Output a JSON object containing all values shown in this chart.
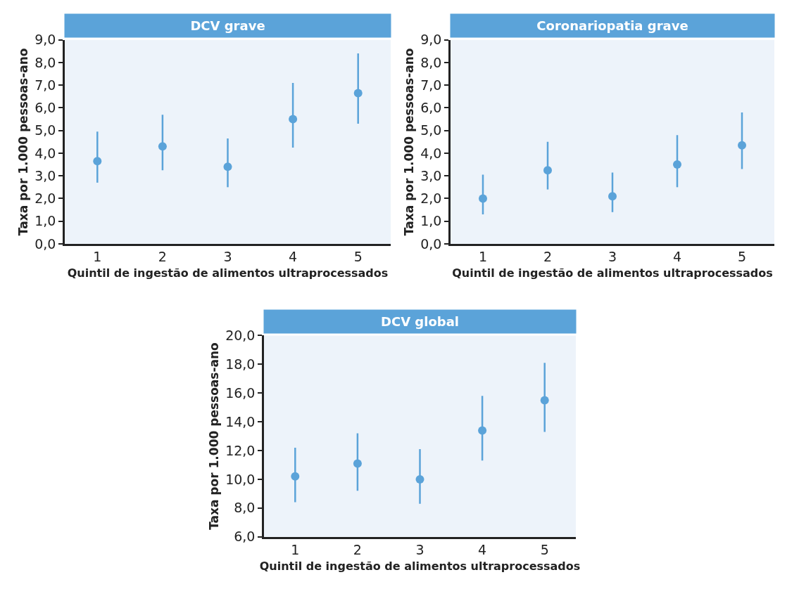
{
  "chart_data": [
    {
      "type": "scatter",
      "title": "DCV grave",
      "xlabel": "Quintil de ingestão de alimentos ultraprocessados",
      "ylabel": "Taxa por 1.000 pessoas-ano",
      "categories": [
        "1",
        "2",
        "3",
        "4",
        "5"
      ],
      "marker": "circle",
      "series": [
        {
          "color": "#5ba3d9",
          "values": [
            3.65,
            4.3,
            3.4,
            5.5,
            6.65
          ],
          "errors": [
            [
              2.7,
              4.95
            ],
            [
              3.25,
              5.7
            ],
            [
              2.5,
              4.65
            ],
            [
              4.25,
              7.1
            ],
            [
              5.3,
              8.4
            ]
          ]
        }
      ],
      "ylim": [
        0,
        9
      ],
      "yticks": [
        {
          "value": 0,
          "label": "0,0"
        },
        {
          "value": 1,
          "label": "1,0"
        },
        {
          "value": 2,
          "label": "2,0"
        },
        {
          "value": 3,
          "label": "3,0"
        },
        {
          "value": 4,
          "label": "4,0"
        },
        {
          "value": 5,
          "label": "5,0"
        },
        {
          "value": 6,
          "label": "6,0"
        },
        {
          "value": 7,
          "label": "7,0"
        },
        {
          "value": 8,
          "label": "8,0"
        },
        {
          "value": 9,
          "label": "9,0"
        }
      ]
    },
    {
      "type": "scatter",
      "title": "Coronariopatia grave",
      "xlabel": "Quintil de ingestão de alimentos ultraprocessados",
      "ylabel": "Taxa por 1.000 pessoas-ano",
      "categories": [
        "1",
        "2",
        "3",
        "4",
        "5"
      ],
      "marker": "circle",
      "series": [
        {
          "color": "#5ba3d9",
          "values": [
            2.0,
            3.25,
            2.1,
            3.5,
            4.35
          ],
          "errors": [
            [
              1.3,
              3.05
            ],
            [
              2.4,
              4.5
            ],
            [
              1.4,
              3.15
            ],
            [
              2.5,
              4.8
            ],
            [
              3.3,
              5.8
            ]
          ]
        }
      ],
      "ylim": [
        0,
        9
      ],
      "yticks": [
        {
          "value": 0,
          "label": "0,0"
        },
        {
          "value": 1,
          "label": "1,0"
        },
        {
          "value": 2,
          "label": "2,0"
        },
        {
          "value": 3,
          "label": "3,0"
        },
        {
          "value": 4,
          "label": "4,0"
        },
        {
          "value": 5,
          "label": "5,0"
        },
        {
          "value": 6,
          "label": "6,0"
        },
        {
          "value": 7,
          "label": "7,0"
        },
        {
          "value": 8,
          "label": "8,0"
        },
        {
          "value": 9,
          "label": "9,0"
        }
      ]
    },
    {
      "type": "scatter",
      "title": "DCV global",
      "xlabel": "Quintil de ingestão de alimentos ultraprocessados",
      "ylabel": "Taxa por 1.000 pessoas-ano",
      "categories": [
        "1",
        "2",
        "3",
        "4",
        "5"
      ],
      "marker": "circle",
      "series": [
        {
          "color": "#5ba3d9",
          "values": [
            10.2,
            11.1,
            10.0,
            13.4,
            15.5
          ],
          "errors": [
            [
              8.4,
              12.2
            ],
            [
              9.2,
              13.2
            ],
            [
              8.3,
              12.1
            ],
            [
              11.3,
              15.8
            ],
            [
              13.3,
              18.1
            ]
          ]
        }
      ],
      "ylim": [
        6,
        20
      ],
      "yticks": [
        {
          "value": 6,
          "label": "6,0"
        },
        {
          "value": 8,
          "label": "8,0"
        },
        {
          "value": 10,
          "label": "10,0"
        },
        {
          "value": 12,
          "label": "12,0"
        },
        {
          "value": 14,
          "label": "14,0"
        },
        {
          "value": 16,
          "label": "16,0"
        },
        {
          "value": 18,
          "label": "18,0"
        },
        {
          "value": 20,
          "label": "20,0"
        }
      ]
    }
  ]
}
